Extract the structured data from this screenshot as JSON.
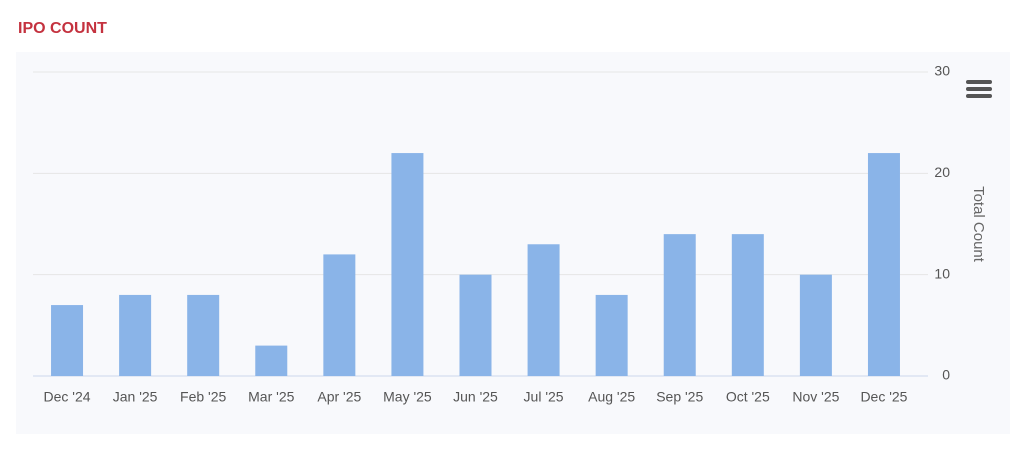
{
  "chart_data": {
    "type": "bar",
    "title": "IPO COUNT",
    "y_axis_label": "Total Count",
    "categories": [
      "Dec '24",
      "Jan '25",
      "Feb '25",
      "Mar '25",
      "Apr '25",
      "May '25",
      "Jun '25",
      "Jul '25",
      "Aug '25",
      "Sep '25",
      "Oct '25",
      "Nov '25",
      "Dec '25"
    ],
    "values": [
      7,
      8,
      8,
      3,
      12,
      22,
      10,
      13,
      8,
      14,
      14,
      10,
      22
    ],
    "color": "#8ab4e8",
    "ylim": [
      0,
      30
    ],
    "yticks": [
      0,
      10,
      20,
      30
    ],
    "grid": true
  }
}
